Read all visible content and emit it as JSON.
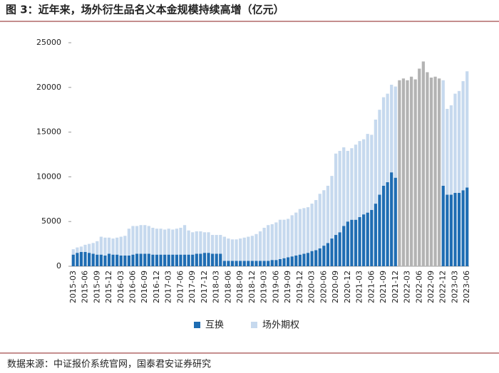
{
  "chart_data": {
    "type": "bar",
    "stacked": true,
    "title": "图 3：近年来，场外衍生品名义本金规模持续高增（亿元）",
    "source": "数据来源：中证报价系统官网，国泰君安证券研究",
    "categories": [
      "2015-03",
      null,
      null,
      "2015-06",
      null,
      null,
      "2015-09",
      null,
      null,
      "2015-12",
      null,
      null,
      "2016-03",
      null,
      null,
      "2016-06",
      null,
      null,
      "2016-09",
      null,
      null,
      "2016-12",
      null,
      null,
      "2017-03",
      null,
      null,
      "2017-06",
      null,
      null,
      "2017-09",
      null,
      null,
      "2017-12",
      null,
      null,
      "2018-03",
      null,
      null,
      "2018-06",
      null,
      null,
      "2018-09",
      null,
      null,
      "2018-12",
      null,
      null,
      "2019-03",
      null,
      null,
      "2019-06",
      null,
      null,
      "2019-09",
      null,
      null,
      "2019-12",
      null,
      null,
      "2020-03",
      null,
      null,
      "2020-06",
      null,
      null,
      "2020-09",
      null,
      null,
      "2020-12",
      null,
      null,
      "2021-03",
      null,
      null,
      "2021-06",
      null,
      null,
      "2021-09",
      null,
      null,
      "2021-12",
      null,
      null,
      "2022-03",
      null,
      null,
      "2022-06",
      null,
      null,
      "2022-09",
      null,
      null,
      "2022-12",
      null,
      null,
      "2023-03",
      null,
      null,
      "2023-06"
    ],
    "series": [
      {
        "name": "互换",
        "color": "#1f6db3",
        "values": [
          1300,
          1500,
          1600,
          1600,
          1500,
          1400,
          1300,
          1300,
          1200,
          1400,
          1300,
          1300,
          1200,
          1200,
          1200,
          1300,
          1400,
          1400,
          1400,
          1400,
          1300,
          1300,
          1300,
          1300,
          1300,
          1300,
          1300,
          1300,
          1300,
          1300,
          1300,
          1400,
          1400,
          1500,
          1500,
          1400,
          1400,
          1400,
          600,
          600,
          600,
          600,
          600,
          600,
          600,
          600,
          600,
          600,
          600,
          600,
          700,
          700,
          800,
          900,
          1000,
          1100,
          1200,
          1300,
          1400,
          1500,
          1700,
          1800,
          2000,
          2300,
          2600,
          3100,
          3500,
          3800,
          4500,
          5000,
          5200,
          5200,
          5500,
          5800,
          6000,
          6300,
          7000,
          8000,
          9000,
          9400,
          10500,
          9900,
          null,
          null,
          null,
          null,
          null,
          null,
          null,
          null,
          null,
          null,
          null,
          9000,
          8000,
          8000,
          8200,
          8200,
          8500,
          8800
        ]
      },
      {
        "name": "场外期权",
        "color": "#c6d9ee",
        "values": [
          600,
          600,
          600,
          800,
          1000,
          1200,
          1500,
          2000,
          2000,
          1800,
          1800,
          1900,
          2100,
          2200,
          3000,
          3200,
          3100,
          3200,
          3200,
          3100,
          3000,
          2900,
          2900,
          2800,
          2900,
          2800,
          2900,
          3000,
          3300,
          2700,
          2500,
          2500,
          2500,
          2300,
          2300,
          2100,
          2100,
          2100,
          2700,
          2500,
          2400,
          2400,
          2500,
          2600,
          2700,
          2800,
          3000,
          3300,
          3700,
          4000,
          4000,
          4200,
          4400,
          4300,
          4300,
          4600,
          4800,
          5100,
          5100,
          5100,
          5300,
          5600,
          6100,
          6200,
          6400,
          7000,
          9100,
          9100,
          8800,
          7900,
          8000,
          8400,
          8500,
          8400,
          8800,
          8400,
          9400,
          9500,
          9900,
          9900,
          9800,
          10200,
          null,
          null,
          null,
          null,
          null,
          null,
          null,
          null,
          null,
          null,
          null,
          11800,
          9600,
          10000,
          11100,
          11400,
          12200,
          13000
        ]
      },
      {
        "color": "#b3b3b3",
        "values": [
          null,
          null,
          null,
          null,
          null,
          null,
          null,
          null,
          null,
          null,
          null,
          null,
          null,
          null,
          null,
          null,
          null,
          null,
          null,
          null,
          null,
          null,
          null,
          null,
          null,
          null,
          null,
          null,
          null,
          null,
          null,
          null,
          null,
          null,
          null,
          null,
          null,
          null,
          null,
          null,
          null,
          null,
          null,
          null,
          null,
          null,
          null,
          null,
          null,
          null,
          null,
          null,
          null,
          null,
          null,
          null,
          null,
          null,
          null,
          null,
          null,
          null,
          null,
          null,
          null,
          null,
          null,
          null,
          null,
          null,
          null,
          null,
          null,
          null,
          null,
          null,
          null,
          null,
          null,
          null,
          null,
          null,
          20800,
          21000,
          20800,
          21200,
          20900,
          22100,
          22900,
          21700,
          21100,
          21200,
          21000,
          null,
          null,
          null,
          null,
          null,
          null,
          null
        ]
      }
    ],
    "ylim": [
      0,
      25000
    ],
    "yticks": [
      0,
      5000,
      10000,
      15000,
      20000,
      25000
    ]
  }
}
